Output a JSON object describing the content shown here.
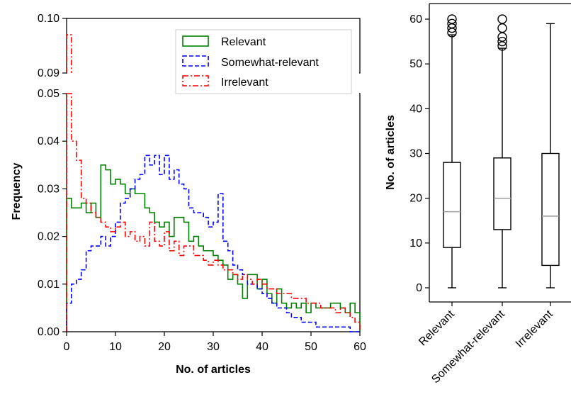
{
  "chart_data": [
    {
      "type": "histogram",
      "xlabel": "No. of articles",
      "ylabel": "Frequency",
      "xlim": [
        0,
        60
      ],
      "ylim_lower": [
        0,
        0.05
      ],
      "ylim_upper": [
        0.09,
        0.1
      ],
      "broken_y_axis": true,
      "xticks": [
        "0",
        "10",
        "20",
        "30",
        "40",
        "50",
        "60"
      ],
      "yticks_lower": [
        "0.00",
        "0.01",
        "0.02",
        "0.03",
        "0.04",
        "0.05"
      ],
      "yticks_upper": [
        "0.09",
        "0.10"
      ],
      "bin_width": 1,
      "legend_position": "top-right",
      "series": [
        {
          "name": "Relevant",
          "color": "#008000",
          "linestyle": "solid",
          "values": [
            0.028,
            0.026,
            0.026,
            0.027,
            0.025,
            0.027,
            0.024,
            0.035,
            0.034,
            0.031,
            0.032,
            0.031,
            0.029,
            0.03,
            0.029,
            0.029,
            0.026,
            0.025,
            0.023,
            0.022,
            0.023,
            0.02,
            0.024,
            0.024,
            0.023,
            0.019,
            0.02,
            0.018,
            0.017,
            0.017,
            0.016,
            0.015,
            0.014,
            0.011,
            0.012,
            0.01,
            0.007,
            0.012,
            0.012,
            0.009,
            0.011,
            0.008,
            0.006,
            0.009,
            0.006,
            0.005,
            0.006,
            0.005,
            0.006,
            0.004,
            0.006,
            0.005,
            0.005,
            0.005,
            0.006,
            0.006,
            0.005,
            0.004,
            0.006,
            0.004
          ]
        },
        {
          "name": "Somewhat-relevant",
          "color": "#0000ff",
          "linestyle": "dashed",
          "values": [
            0.006,
            0.01,
            0.011,
            0.013,
            0.017,
            0.018,
            0.018,
            0.02,
            0.018,
            0.02,
            0.023,
            0.027,
            0.028,
            0.03,
            0.032,
            0.033,
            0.037,
            0.035,
            0.037,
            0.033,
            0.037,
            0.032,
            0.034,
            0.031,
            0.03,
            0.026,
            0.025,
            0.025,
            0.024,
            0.022,
            0.023,
            0.029,
            0.019,
            0.017,
            0.014,
            0.013,
            0.012,
            0.01,
            0.01,
            0.009,
            0.008,
            0.007,
            0.006,
            0.005,
            0.005,
            0.004,
            0.003,
            0.003,
            0.002,
            0.002,
            0.002,
            0.001,
            0.001,
            0.001,
            0.001,
            0.001,
            0.001,
            0.001,
            0.0,
            0.0
          ]
        },
        {
          "name": "Irrelevant",
          "color": "#ff0000",
          "linestyle": "dashdot",
          "values": [
            0.097,
            0.04,
            0.036,
            0.028,
            0.027,
            0.025,
            0.024,
            0.023,
            0.022,
            0.021,
            0.022,
            0.023,
            0.02,
            0.021,
            0.019,
            0.02,
            0.018,
            0.023,
            0.019,
            0.018,
            0.021,
            0.017,
            0.019,
            0.016,
            0.018,
            0.018,
            0.016,
            0.016,
            0.015,
            0.014,
            0.015,
            0.014,
            0.013,
            0.013,
            0.012,
            0.011,
            0.012,
            0.011,
            0.01,
            0.011,
            0.01,
            0.009,
            0.009,
            0.008,
            0.008,
            0.008,
            0.007,
            0.007,
            0.007,
            0.006,
            0.006,
            0.006,
            0.005,
            0.005,
            0.005,
            0.004,
            0.005,
            0.004,
            0.003,
            0.002
          ]
        }
      ]
    },
    {
      "type": "box",
      "ylabel": "No. of articles",
      "ylim": [
        0,
        60
      ],
      "yticks": [
        "0",
        "10",
        "20",
        "30",
        "40",
        "50",
        "60"
      ],
      "categories": [
        "Relevant",
        "Somewhat-relevant",
        "Irrelevant"
      ],
      "boxes": [
        {
          "name": "Relevant",
          "whisker_low": 0,
          "q1": 9,
          "median": 17,
          "q3": 28,
          "whisker_high": 56.5,
          "outliers": [
            57,
            58,
            59,
            60
          ]
        },
        {
          "name": "Somewhat-relevant",
          "whisker_low": 0,
          "q1": 13,
          "median": 20,
          "q3": 29,
          "whisker_high": 53.5,
          "outliers": [
            54,
            55,
            56,
            58,
            60
          ]
        },
        {
          "name": "Irrelevant",
          "whisker_low": 0,
          "q1": 5,
          "median": 16,
          "q3": 30,
          "whisker_high": 59,
          "outliers": []
        }
      ],
      "median_color": "#a0a0a0",
      "outlier_marker": "open-circle"
    }
  ]
}
